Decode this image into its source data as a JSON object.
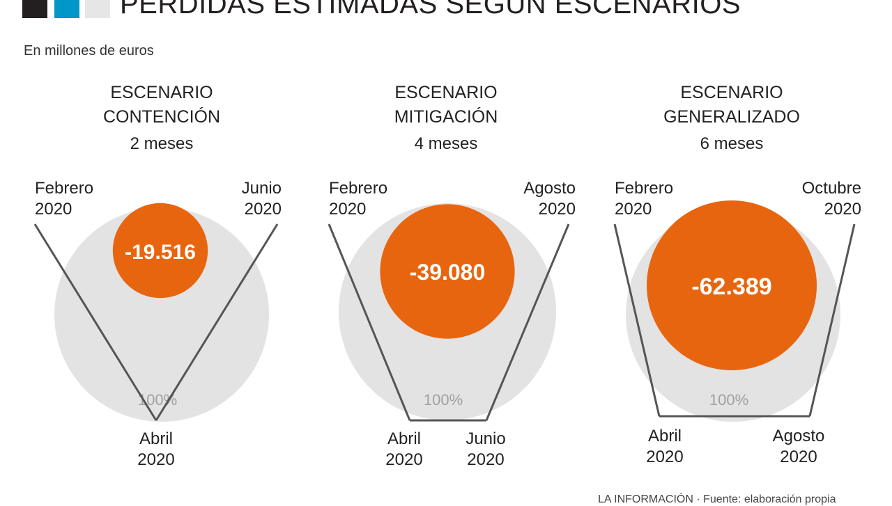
{
  "header": {
    "title": "PÉRDIDAS ESTIMADAS SEGÚN ESCENARIOS",
    "subtitle": "En millones de euros"
  },
  "source": "LA INFORMACIÓN · Fuente: elaboración propia",
  "colors": {
    "accent": "#e8650f",
    "full_circle": "#e3e3e3",
    "line": "#555555",
    "square_dark": "#231f20",
    "square_blue": "#0096c7",
    "square_light": "#e6e6e6"
  },
  "chart_data": {
    "type": "bubble",
    "unit": "millones de euros",
    "reference_label": "100%",
    "scenarios": [
      {
        "name_line1": "ESCENARIO",
        "name_line2": "CONTENCIÓN",
        "duration": "2 meses",
        "value": -19516,
        "value_label": "-19.516",
        "start": {
          "month": "Febrero",
          "year": "2020"
        },
        "end": {
          "month": "Junio",
          "year": "2020"
        },
        "bottom": [
          {
            "month": "Abril",
            "year": "2020"
          }
        ]
      },
      {
        "name_line1": "ESCENARIO",
        "name_line2": "MITIGACIÓN",
        "duration": "4 meses",
        "value": -39080,
        "value_label": "-39.080",
        "start": {
          "month": "Febrero",
          "year": "2020"
        },
        "end": {
          "month": "Agosto",
          "year": "2020"
        },
        "bottom": [
          {
            "month": "Abril",
            "year": "2020"
          },
          {
            "month": "Junio",
            "year": "2020"
          }
        ]
      },
      {
        "name_line1": "ESCENARIO",
        "name_line2": "GENERALIZADO",
        "duration": "6 meses",
        "value": -62389,
        "value_label": "-62.389",
        "start": {
          "month": "Febrero",
          "year": "2020"
        },
        "end": {
          "month": "Octubre",
          "year": "2020"
        },
        "bottom": [
          {
            "month": "Abril",
            "year": "2020"
          },
          {
            "month": "Agosto",
            "year": "2020"
          }
        ]
      }
    ]
  }
}
